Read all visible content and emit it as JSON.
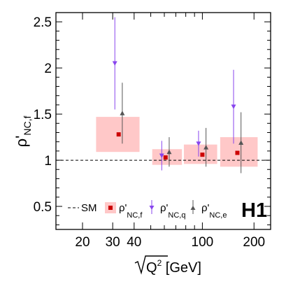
{
  "chart_data": {
    "type": "scatter",
    "x_scale": "log",
    "xlim": [
      14,
      250
    ],
    "ylim": [
      0.25,
      2.6
    ],
    "x_ticks": [
      {
        "value": 20,
        "label": "20"
      },
      {
        "value": 30,
        "label": "30"
      },
      {
        "value": 40,
        "label": "40"
      },
      {
        "value": 100,
        "label": "100"
      },
      {
        "value": 200,
        "label": "200"
      }
    ],
    "y_ticks": [
      {
        "value": 0.5,
        "label": "0.5"
      },
      {
        "value": 1.0,
        "label": "1"
      },
      {
        "value": 1.5,
        "label": "1.5"
      },
      {
        "value": 2.0,
        "label": "2"
      },
      {
        "value": 2.5,
        "label": "2.5"
      }
    ],
    "xlabel_main": "Q",
    "xlabel_sup": "2",
    "xlabel_unit": " [GeV]",
    "ylabel_main": "ρ'",
    "ylabel_sub": "NC,f",
    "sm_value": 1.0,
    "bins": [
      {
        "x_low": 24,
        "x_high": 43,
        "center": 32.5
      },
      {
        "x_low": 51,
        "x_high": 76,
        "center": 61
      },
      {
        "x_low": 78,
        "x_high": 122,
        "center": 100
      },
      {
        "x_low": 127,
        "x_high": 210,
        "center": 160
      }
    ],
    "series": [
      {
        "name": "ρ'",
        "sub": "NC,f",
        "marker": "square",
        "color": "#cc0000",
        "band_color": "#ffc8c8",
        "values": [
          1.28,
          1.03,
          1.06,
          1.08
        ],
        "band_low": [
          1.09,
          0.95,
          0.96,
          0.93
        ],
        "band_high": [
          1.47,
          1.12,
          1.17,
          1.25
        ]
      },
      {
        "name": "ρ'",
        "sub": "NC,q",
        "marker": "triangle-down",
        "color": "#8844ee",
        "x_factor": 0.95,
        "values": [
          2.05,
          1.05,
          1.18,
          1.58
        ],
        "err_low": [
          1.55,
          0.89,
          1.04,
          1.18
        ],
        "err_high": [
          2.55,
          1.21,
          1.32,
          1.98
        ]
      },
      {
        "name": "ρ'",
        "sub": "NC,e",
        "marker": "triangle-up",
        "color": "#555555",
        "x_factor": 1.05,
        "values": [
          1.51,
          1.09,
          1.14,
          1.19
        ],
        "err_low": [
          1.18,
          0.93,
          0.93,
          0.86
        ],
        "err_high": [
          1.84,
          1.25,
          1.35,
          1.52
        ]
      }
    ],
    "legend": {
      "placement": "bottom",
      "sm_label": "SM"
    },
    "experiment_label": "H1"
  }
}
